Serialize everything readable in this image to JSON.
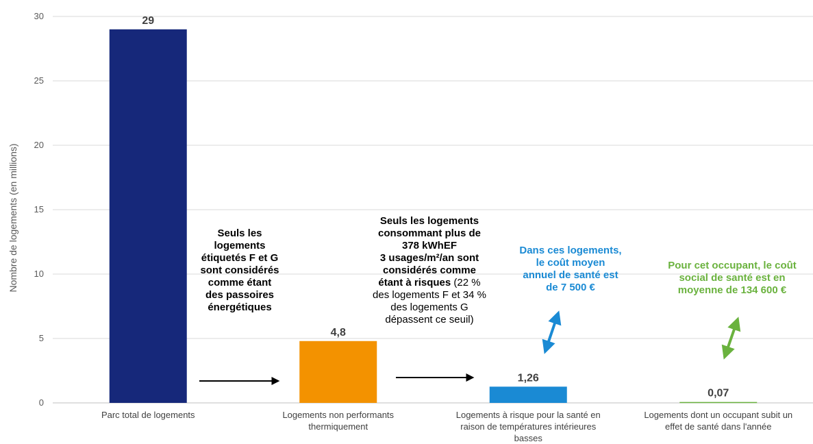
{
  "chart_data": {
    "type": "bar",
    "ylabel": "Nombre de logements (en millions)",
    "ylim": [
      0,
      30
    ],
    "yticks": [
      0,
      5,
      10,
      15,
      20,
      25,
      30
    ],
    "grid": true,
    "categories": [
      [
        "Parc total de logements"
      ],
      [
        "Logements non performants",
        "thermiquement"
      ],
      [
        "Logements à risque pour la santé en",
        "raison de températures intérieures",
        "basses"
      ],
      [
        "Logements dont un occupant subit un",
        "effet de santé dans l'année"
      ]
    ],
    "values": [
      29,
      4.8,
      1.26,
      0.07
    ],
    "value_labels": [
      "29",
      "4,8",
      "1,26",
      "0,07"
    ],
    "colors": [
      "#16287a",
      "#f39200",
      "#1a8ad4",
      "#6ab23e"
    ]
  },
  "annotations": {
    "a1": [
      "Seuls les",
      "logements",
      "étiquetés F et G",
      "sont considérés",
      "comme étant",
      "des passoires",
      "énergétiques"
    ],
    "a2_bold": [
      "Seuls les logements",
      "consommant plus de",
      "378 kWhEF",
      "3 usages/m²/an sont",
      "considérés comme"
    ],
    "a2_mixed_bold": "étant à risques",
    "a2_mixed_normal": " (22 %",
    "a2_normal": [
      "des logements F et 34 %",
      "des logements G",
      "dépassent ce seuil)"
    ],
    "a3": [
      "Dans ces logements,",
      "le coût moyen",
      "annuel de santé est",
      "de 7 500 €"
    ],
    "a4": [
      "Pour cet occupant, le coût",
      "social de santé est en",
      "moyenne de 134 600 €"
    ]
  },
  "colors": {
    "grid": "#d9d9d9",
    "arrow_black": "#000000",
    "arrow_blue": "#1a8ad4",
    "arrow_green": "#6ab23e"
  }
}
